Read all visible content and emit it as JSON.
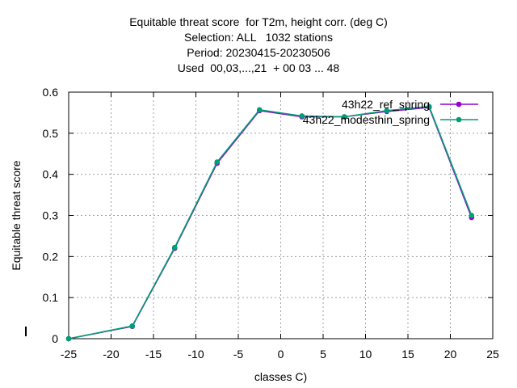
{
  "chart_data": {
    "type": "line",
    "title_lines": [
      "Equitable threat score  for T2m, height corr. (deg C)",
      "Selection: ALL   1032 stations",
      "Period: 20230415-20230506",
      "Used  00,03,...,21  + 00 03 ... 48"
    ],
    "xlabel": "classes C)",
    "ylabel": "Equitable threat score",
    "xlim": [
      -25,
      25
    ],
    "ylim": [
      0,
      0.6
    ],
    "xticks": [
      -25,
      -20,
      -15,
      -10,
      -5,
      0,
      5,
      10,
      15,
      20,
      25
    ],
    "yticks": [
      0,
      0.1,
      0.2,
      0.3,
      0.4,
      0.5,
      0.6
    ],
    "grid": true,
    "legend_placement": "top-right",
    "series": [
      {
        "name": "43h22_ref_spring",
        "color": "#9400d3",
        "x": [
          -25,
          -17.5,
          -12.5,
          -7.5,
          -2.5,
          2.5,
          7.5,
          12.5,
          17.5,
          22.5
        ],
        "y": [
          0.0,
          0.03,
          0.22,
          0.427,
          0.555,
          0.54,
          0.54,
          0.553,
          0.563,
          0.295
        ]
      },
      {
        "name": "43h22_modesthin_spring",
        "color": "#009e73",
        "x": [
          -25,
          -17.5,
          -12.5,
          -7.5,
          -2.5,
          2.5,
          7.5,
          12.5,
          17.5,
          22.5
        ],
        "y": [
          0.0,
          0.031,
          0.222,
          0.43,
          0.557,
          0.542,
          0.54,
          0.555,
          0.565,
          0.3
        ]
      }
    ]
  }
}
